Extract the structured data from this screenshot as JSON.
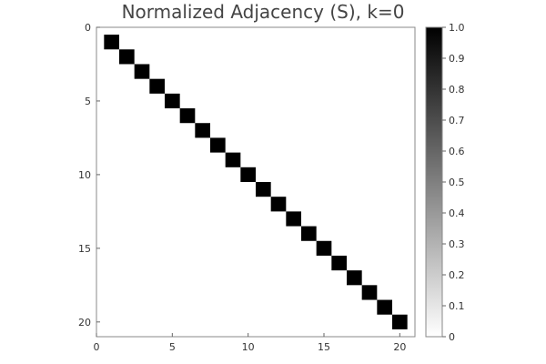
{
  "chart_data": {
    "type": "heatmap",
    "title": "Normalized Adjacency (S), k=0",
    "xlabel": "",
    "ylabel": "",
    "matrix_size": 21,
    "x_range": [
      0,
      21
    ],
    "y_range": [
      0,
      21
    ],
    "x_ticks": [
      "0",
      "5",
      "10",
      "15",
      "20"
    ],
    "y_ticks": [
      "0",
      "5",
      "10",
      "15",
      "20"
    ],
    "cells": [
      {
        "row": 1,
        "col": 1,
        "value": 1.0
      },
      {
        "row": 2,
        "col": 2,
        "value": 1.0
      },
      {
        "row": 3,
        "col": 3,
        "value": 1.0
      },
      {
        "row": 4,
        "col": 4,
        "value": 1.0
      },
      {
        "row": 5,
        "col": 5,
        "value": 1.0
      },
      {
        "row": 6,
        "col": 6,
        "value": 1.0
      },
      {
        "row": 7,
        "col": 7,
        "value": 1.0
      },
      {
        "row": 8,
        "col": 8,
        "value": 1.0
      },
      {
        "row": 9,
        "col": 9,
        "value": 1.0
      },
      {
        "row": 10,
        "col": 10,
        "value": 1.0
      },
      {
        "row": 11,
        "col": 11,
        "value": 1.0
      },
      {
        "row": 12,
        "col": 12,
        "value": 1.0
      },
      {
        "row": 13,
        "col": 13,
        "value": 1.0
      },
      {
        "row": 14,
        "col": 14,
        "value": 1.0
      },
      {
        "row": 15,
        "col": 15,
        "value": 1.0
      },
      {
        "row": 16,
        "col": 16,
        "value": 1.0
      },
      {
        "row": 17,
        "col": 17,
        "value": 1.0
      },
      {
        "row": 18,
        "col": 18,
        "value": 1.0
      },
      {
        "row": 19,
        "col": 19,
        "value": 1.0
      },
      {
        "row": 20,
        "col": 20,
        "value": 1.0
      }
    ],
    "colorbar": {
      "min": 0,
      "max": 1.0,
      "min_color": "#ffffff",
      "max_color": "#000000",
      "ticks": [
        "0",
        "0.1",
        "0.2",
        "0.3",
        "0.4",
        "0.5",
        "0.6",
        "0.7",
        "0.8",
        "0.9",
        "1.0"
      ]
    },
    "grid": false,
    "legend": "colorbar-right"
  }
}
